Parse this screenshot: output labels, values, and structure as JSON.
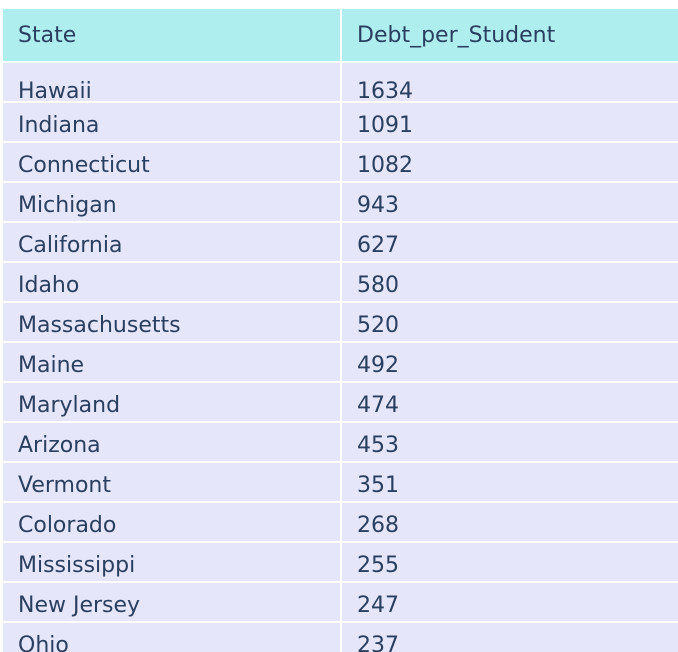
{
  "chart_data": {
    "type": "table",
    "columns": [
      "State",
      "Debt_per_Student"
    ],
    "rows": [
      {
        "state": "Hawaii",
        "debt": "1634"
      },
      {
        "state": "Indiana",
        "debt": "1091"
      },
      {
        "state": "Connecticut",
        "debt": "1082"
      },
      {
        "state": "Michigan",
        "debt": "943"
      },
      {
        "state": "California",
        "debt": "627"
      },
      {
        "state": "Idaho",
        "debt": "580"
      },
      {
        "state": "Massachusetts",
        "debt": "520"
      },
      {
        "state": "Maine",
        "debt": "492"
      },
      {
        "state": "Maryland",
        "debt": "474"
      },
      {
        "state": "Arizona",
        "debt": "453"
      },
      {
        "state": "Vermont",
        "debt": "351"
      },
      {
        "state": "Colorado",
        "debt": "268"
      },
      {
        "state": "Mississippi",
        "debt": "255"
      },
      {
        "state": "New Jersey",
        "debt": "247"
      },
      {
        "state": "Ohio",
        "debt": "237"
      }
    ],
    "colors": {
      "header_fill": "#afeeee",
      "cell_fill": "#e6e6fa",
      "text": "#2a3f5f",
      "line": "#ffffff"
    }
  }
}
